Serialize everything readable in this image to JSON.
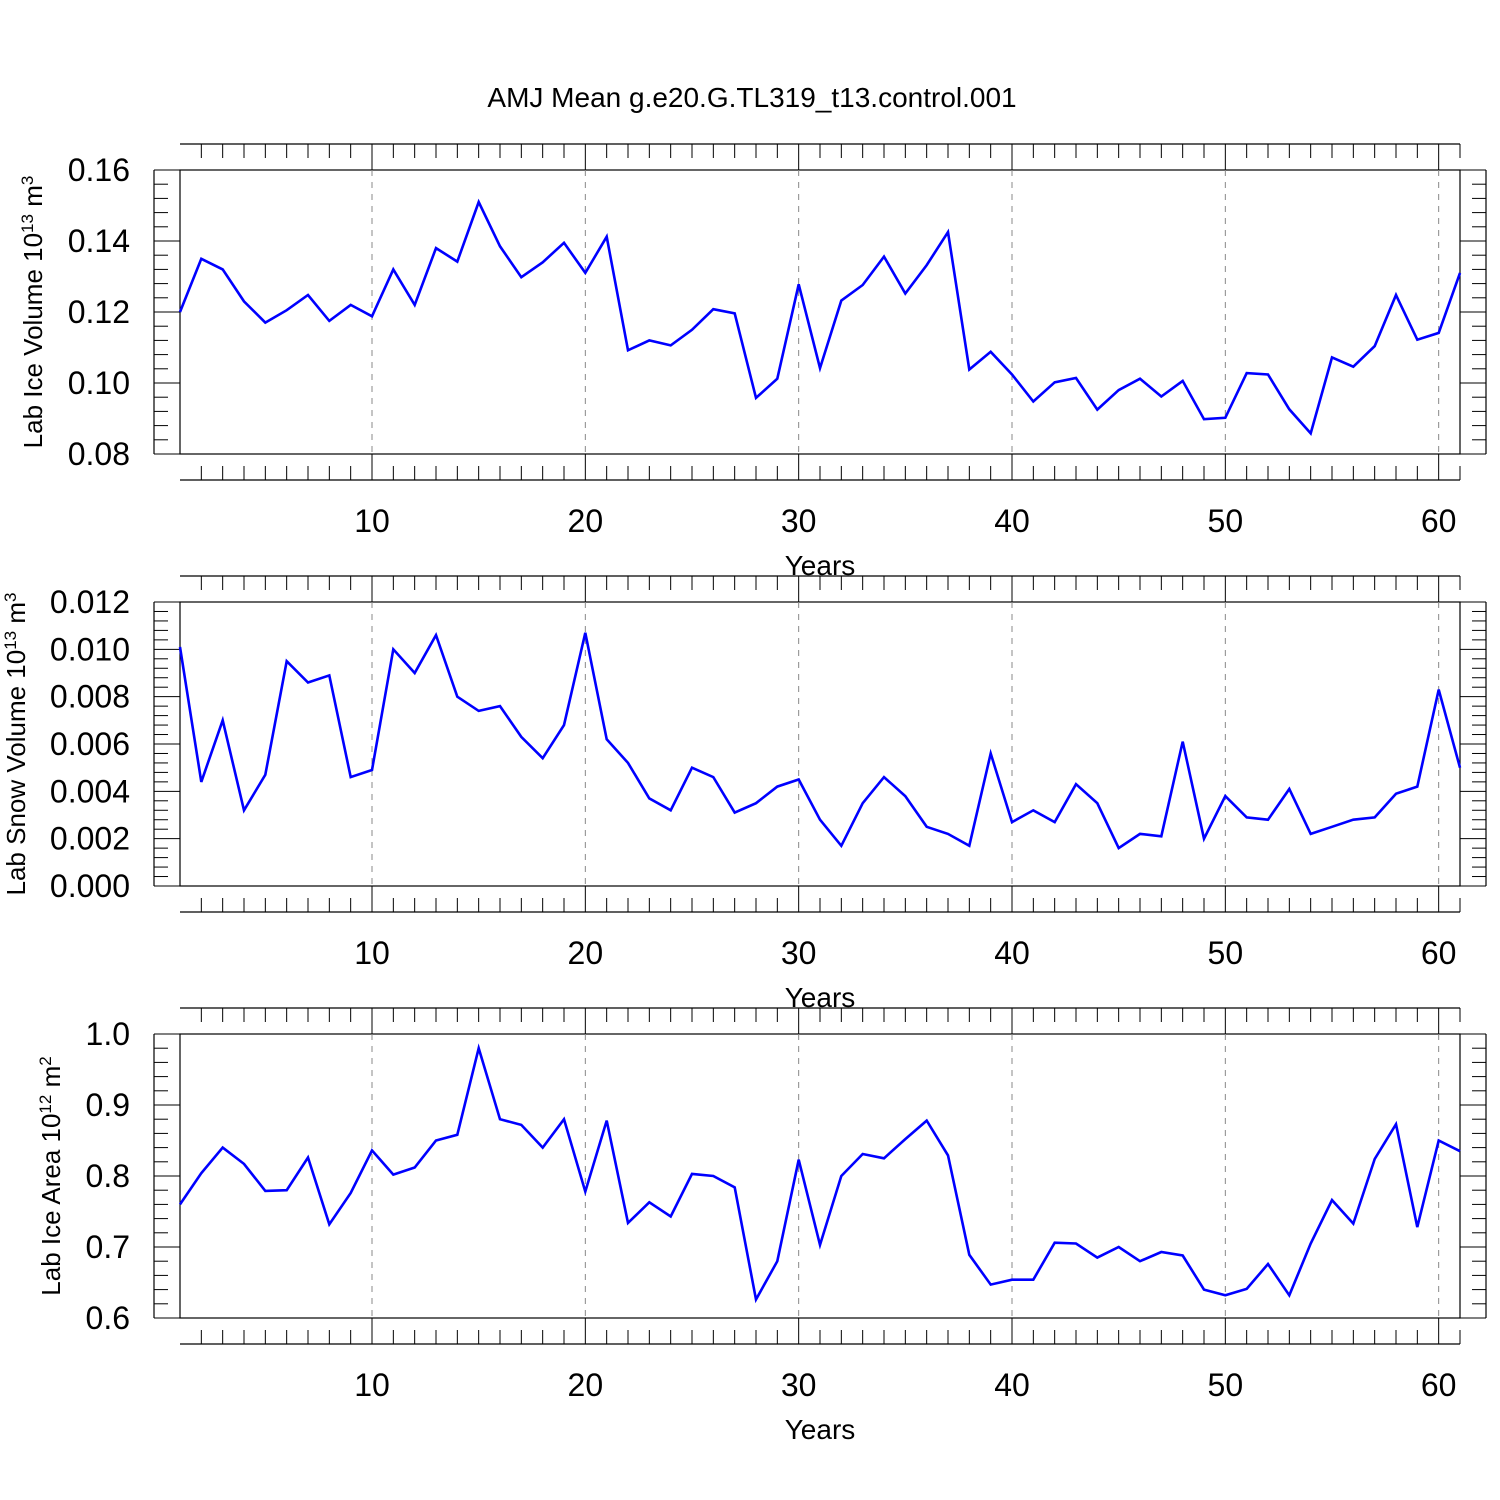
{
  "title": "AMJ Mean g.e20.G.TL319_t13.control.001",
  "colors": {
    "line": "#0000ff",
    "axis": "#000000",
    "grid": "#888888"
  },
  "chart_data": [
    {
      "type": "line",
      "xlabel": "Years",
      "ylabel": {
        "main": "Lab Ice Volume 10",
        "exp": "13",
        "unit": " m",
        "unit_exp": "3"
      },
      "xlim": [
        1,
        61
      ],
      "ylim": [
        0.08,
        0.16
      ],
      "x_ticks": [
        10,
        20,
        30,
        40,
        50,
        60
      ],
      "y_ticks": [
        0.08,
        0.1,
        0.12,
        0.14,
        0.16
      ],
      "y_tick_labels": [
        "0.08",
        "0.10",
        "0.12",
        "0.14",
        "0.16"
      ],
      "grid": "vertical-dashed",
      "series": [
        {
          "values": [
            0.12,
            0.135,
            0.132,
            0.123,
            0.117,
            0.1205,
            0.1248,
            0.1175,
            0.122,
            0.1188,
            0.132,
            0.122,
            0.138,
            0.1342,
            0.151,
            0.1385,
            0.1298,
            0.134,
            0.1395,
            0.131,
            0.1412,
            0.1092,
            0.112,
            0.1106,
            0.115,
            0.1208,
            0.1196,
            0.0958,
            0.1012,
            0.1278,
            0.1042,
            0.1232,
            0.1276,
            0.1356,
            0.1252,
            0.1332,
            0.1425,
            0.1038,
            0.1088,
            0.1024,
            0.0948,
            0.1002,
            0.1014,
            0.0925,
            0.098,
            0.1012,
            0.0962,
            0.1006,
            0.0898,
            0.0902,
            0.1028,
            0.1024,
            0.0926,
            0.0858,
            0.1072,
            0.1046,
            0.1104,
            0.1248,
            0.1122,
            0.1141,
            0.131
          ]
        }
      ]
    },
    {
      "type": "line",
      "xlabel": "Years",
      "ylabel": {
        "main": "Lab Snow Volume 10",
        "exp": "13",
        "unit": " m",
        "unit_exp": "3"
      },
      "xlim": [
        1,
        61
      ],
      "ylim": [
        0.0,
        0.012
      ],
      "x_ticks": [
        10,
        20,
        30,
        40,
        50,
        60
      ],
      "y_ticks": [
        0.0,
        0.002,
        0.004,
        0.006,
        0.008,
        0.01,
        0.012
      ],
      "y_tick_labels": [
        "0.000",
        "0.002",
        "0.004",
        "0.006",
        "0.008",
        "0.010",
        "0.012"
      ],
      "grid": "vertical-dashed",
      "series": [
        {
          "values": [
            0.0101,
            0.0044,
            0.007,
            0.0032,
            0.0047,
            0.0095,
            0.0086,
            0.0089,
            0.0046,
            0.0049,
            0.01,
            0.009,
            0.0106,
            0.008,
            0.0074,
            0.0076,
            0.0063,
            0.0054,
            0.0068,
            0.0107,
            0.0062,
            0.0052,
            0.0037,
            0.0032,
            0.005,
            0.0046,
            0.0031,
            0.0035,
            0.0042,
            0.0045,
            0.0028,
            0.0017,
            0.0035,
            0.0046,
            0.0038,
            0.0025,
            0.0022,
            0.0017,
            0.0056,
            0.0027,
            0.0032,
            0.0027,
            0.0043,
            0.0035,
            0.0016,
            0.0022,
            0.0021,
            0.0061,
            0.002,
            0.0038,
            0.0029,
            0.0028,
            0.0041,
            0.0022,
            0.0025,
            0.0028,
            0.0029,
            0.0039,
            0.0042,
            0.0083,
            0.005
          ]
        }
      ]
    },
    {
      "type": "line",
      "xlabel": "Years",
      "ylabel": {
        "main": "Lab Ice Area 10",
        "exp": "12",
        "unit": " m",
        "unit_exp": "2"
      },
      "xlim": [
        1,
        61
      ],
      "ylim": [
        0.6,
        1.0
      ],
      "x_ticks": [
        10,
        20,
        30,
        40,
        50,
        60
      ],
      "y_ticks": [
        0.6,
        0.7,
        0.8,
        0.9,
        1.0
      ],
      "y_tick_labels": [
        "0.6",
        "0.7",
        "0.8",
        "0.9",
        "1.0"
      ],
      "grid": "vertical-dashed",
      "series": [
        {
          "values": [
            0.76,
            0.804,
            0.84,
            0.817,
            0.779,
            0.78,
            0.826,
            0.732,
            0.776,
            0.836,
            0.802,
            0.812,
            0.85,
            0.858,
            0.98,
            0.88,
            0.872,
            0.84,
            0.88,
            0.778,
            0.878,
            0.734,
            0.763,
            0.743,
            0.803,
            0.8,
            0.784,
            0.626,
            0.68,
            0.823,
            0.703,
            0.8,
            0.831,
            0.825,
            0.852,
            0.878,
            0.829,
            0.689,
            0.647,
            0.654,
            0.654,
            0.706,
            0.705,
            0.685,
            0.7,
            0.68,
            0.693,
            0.688,
            0.64,
            0.632,
            0.641,
            0.676,
            0.632,
            0.705,
            0.766,
            0.733,
            0.824,
            0.873,
            0.728,
            0.85,
            0.835
          ]
        }
      ]
    }
  ]
}
